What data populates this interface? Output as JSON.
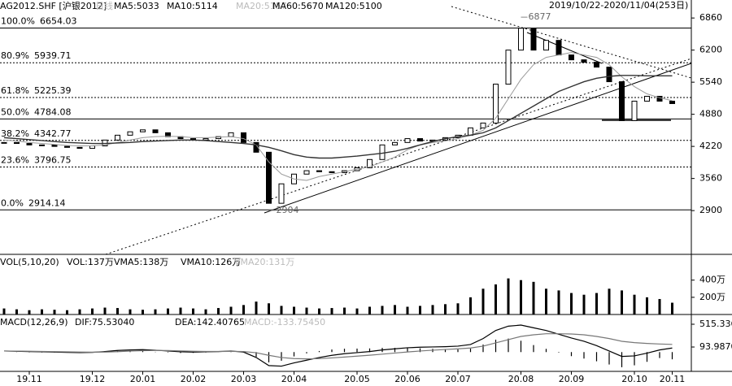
{
  "chart_data": [
    {
      "type": "line",
      "title": "AG2012.SHF [沪银2012]",
      "subtitle": "日线",
      "indicators": [
        {
          "text": "MA5:5033",
          "color": "#000000"
        },
        {
          "text": "MA10:5114",
          "color": "#000000"
        },
        {
          "text": "MA20:5157",
          "color": "#bbbbbb"
        },
        {
          "text": "MA60:5670",
          "color": "#000000"
        },
        {
          "text": "MA120:5100",
          "color": "#000000"
        }
      ],
      "date_range": "2019/10/22-2020/11/04(253日)",
      "ylim": [
        2000,
        7230
      ],
      "yticks": [
        6860,
        6200,
        5540,
        4880,
        4220,
        3560,
        2900
      ],
      "fib_levels": [
        {
          "label": "100.0%",
          "value": 6654.03,
          "solid": true
        },
        {
          "label": "80.9%",
          "value": 5939.71,
          "solid": false
        },
        {
          "label": "61.8%",
          "value": 5225.39,
          "solid": false
        },
        {
          "label": "50.0%",
          "value": 4784.08,
          "solid": true
        },
        {
          "label": "38.2%",
          "value": 4342.77,
          "solid": false
        },
        {
          "label": "23.6%",
          "value": 3796.75,
          "solid": false
        },
        {
          "label": "0.0%",
          "value": 2914.14,
          "solid": true
        }
      ],
      "annotations": [
        {
          "value": 6877,
          "at": "max"
        },
        {
          "value": 2904,
          "at": "min"
        }
      ],
      "series": [
        {
          "color": "#000000",
          "width": 1.2,
          "values": [
            4300,
            4280,
            4250,
            4250,
            4220,
            4200,
            4180,
            4230,
            4350,
            4450,
            4520,
            4560,
            4500,
            4420,
            4380,
            4350,
            4380,
            4420,
            4500,
            4300,
            4100,
            3050,
            3450,
            3650,
            3720,
            3700,
            3680,
            3720,
            3780,
            3950,
            4250,
            4300,
            4380,
            4330,
            4350,
            4400,
            4450,
            4600,
            4700,
            5500,
            6200,
            6650,
            6200,
            6400,
            6100,
            6000,
            5950,
            5850,
            5550,
            4750,
            5150,
            5250,
            5150,
            5100
          ]
        },
        {
          "color": "#999999",
          "width": 1,
          "values": [
            4350,
            4330,
            4300,
            4280,
            4260,
            4240,
            4230,
            4230,
            4250,
            4300,
            4350,
            4400,
            4420,
            4430,
            4420,
            4400,
            4400,
            4410,
            4420,
            4380,
            4250,
            3900,
            3650,
            3550,
            3520,
            3600,
            3650,
            3700,
            3750,
            3800,
            3900,
            4000,
            4150,
            4250,
            4300,
            4330,
            4380,
            4450,
            4550,
            4800,
            5200,
            5600,
            5900,
            6050,
            6100,
            6150,
            6100,
            6050,
            5900,
            5650,
            5450,
            5300,
            5220,
            5160
          ]
        },
        {
          "color": "#333333",
          "width": 1.4,
          "values": [
            4400,
            4380,
            4360,
            4340,
            4320,
            4300,
            4290,
            4280,
            4280,
            4290,
            4300,
            4320,
            4330,
            4340,
            4350,
            4350,
            4340,
            4320,
            4300,
            4280,
            4250,
            4200,
            4130,
            4050,
            4000,
            3980,
            3980,
            4000,
            4020,
            4050,
            4080,
            4120,
            4180,
            4250,
            4320,
            4380,
            4420,
            4450,
            4500,
            4600,
            4750,
            4900,
            5050,
            5200,
            5350,
            5450,
            5550,
            5620,
            5660,
            5680,
            5680,
            5670,
            5670,
            5670
          ]
        }
      ]
    },
    {
      "type": "bar",
      "indicators": [
        {
          "text": "VOL(5,10,20)",
          "color": "#000000"
        },
        {
          "text": "VOL:137万",
          "color": "#000000"
        },
        {
          "text": "VMA5:138万",
          "color": "#000000"
        },
        {
          "text": "VMA10:126万",
          "color": "#000000"
        },
        {
          "text": "VMA20:131万",
          "color": "#bbbbbb"
        }
      ],
      "ylim": [
        0,
        700
      ],
      "yticks": [
        {
          "value": 400,
          "label": "400万"
        },
        {
          "value": 200,
          "label": "200万"
        }
      ],
      "color": "#000000",
      "values": [
        70,
        60,
        50,
        60,
        55,
        50,
        60,
        70,
        80,
        75,
        60,
        55,
        60,
        70,
        80,
        70,
        60,
        75,
        90,
        110,
        150,
        130,
        100,
        90,
        80,
        70,
        75,
        80,
        70,
        90,
        100,
        110,
        90,
        100,
        110,
        120,
        130,
        200,
        300,
        350,
        420,
        400,
        380,
        300,
        280,
        250,
        230,
        250,
        300,
        280,
        230,
        200,
        180,
        137
      ]
    },
    {
      "type": "macd",
      "indicators": [
        {
          "text": "MACD(12,26,9)",
          "color": "#000000"
        },
        {
          "text": "DIF:75.53040",
          "color": "#000000"
        },
        {
          "text": "DEA:142.40765",
          "color": "#000000"
        },
        {
          "text": "MACD:-133.75450",
          "color": "#bbbbbb"
        }
      ],
      "ylim": [
        -357,
        696
      ],
      "yticks": [
        {
          "value": 515.336,
          "label": "515.3360"
        },
        93.98704
      ],
      "categories": [
        null,
        null,
        "19.11",
        null,
        null,
        null,
        null,
        "19.12",
        null,
        null,
        null,
        "20.01",
        null,
        null,
        null,
        "20.02",
        null,
        null,
        null,
        "20.03",
        null,
        null,
        null,
        "20.04",
        null,
        null,
        null,
        null,
        "20.05",
        null,
        null,
        null,
        "20.06",
        null,
        null,
        null,
        "20.07",
        null,
        null,
        null,
        null,
        "20.08",
        null,
        null,
        null,
        "20.09",
        null,
        null,
        null,
        null,
        "20.10",
        null,
        null,
        "20.11"
      ],
      "series": [
        {
          "color": "#000000",
          "values": [
            20,
            15,
            10,
            5,
            0,
            -5,
            -10,
            -5,
            10,
            30,
            40,
            45,
            35,
            20,
            5,
            0,
            5,
            10,
            20,
            0,
            -100,
            -250,
            -260,
            -200,
            -150,
            -100,
            -60,
            -30,
            -10,
            10,
            40,
            60,
            80,
            90,
            95,
            100,
            110,
            140,
            250,
            400,
            480,
            500,
            450,
            400,
            330,
            260,
            200,
            120,
            20,
            -80,
            -70,
            -20,
            40,
            75.5304
          ]
        },
        {
          "color": "#777777",
          "values": [
            20,
            18,
            15,
            12,
            8,
            4,
            0,
            -2,
            0,
            8,
            18,
            27,
            30,
            28,
            22,
            15,
            12,
            11,
            13,
            10,
            -12,
            -60,
            -100,
            -120,
            -126,
            -120,
            -108,
            -92,
            -75,
            -58,
            -38,
            -18,
            2,
            20,
            35,
            48,
            60,
            76,
            110,
            170,
            230,
            290,
            320,
            340,
            340,
            335,
            320,
            290,
            250,
            200,
            175,
            160,
            150,
            142.40765
          ]
        }
      ],
      "histogram": {
        "color": "#000000",
        "values": [
          0,
          -3,
          -5,
          -7,
          -8,
          -9,
          -10,
          -3,
          10,
          22,
          22,
          18,
          5,
          -8,
          -17,
          -15,
          -7,
          -1,
          7,
          -10,
          -88,
          -190,
          -160,
          -80,
          -24,
          20,
          48,
          62,
          65,
          68,
          78,
          78,
          78,
          70,
          60,
          52,
          50,
          64,
          140,
          230,
          250,
          210,
          130,
          60,
          -10,
          -75,
          -120,
          -170,
          -230,
          -280,
          -245,
          -180,
          -110,
          -133.7545
        ]
      }
    }
  ]
}
